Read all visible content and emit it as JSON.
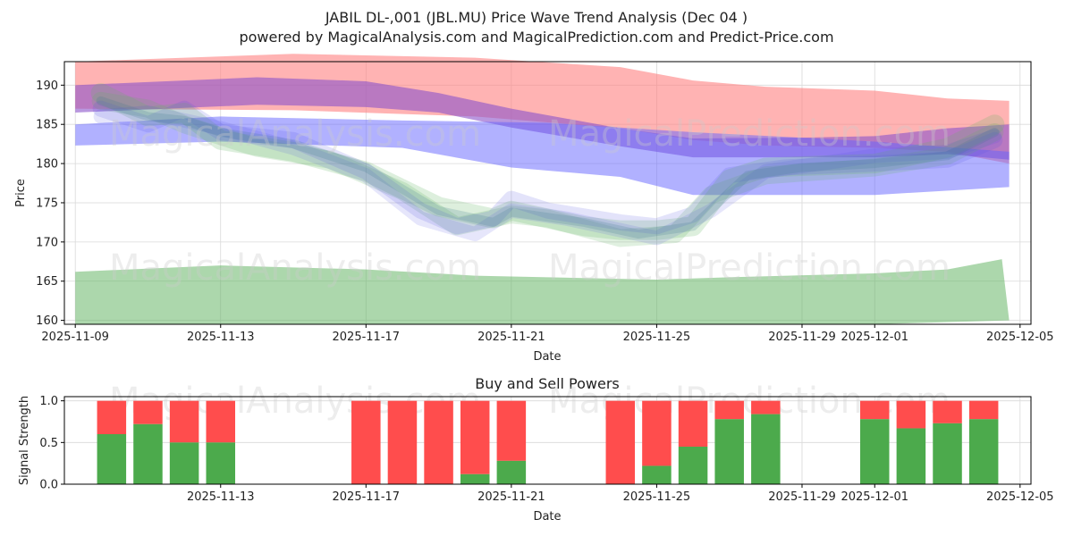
{
  "chart_data": [
    {
      "type": "area",
      "title_line1": "JABIL DL-,001 (JBL.MU) Price Wave Trend Analysis (Dec 04 )",
      "title_line2": "powered by MagicalAnalysis.com and MagicalPrediction.com and Predict-Price.com",
      "xlabel": "Date",
      "ylabel": "Price",
      "xlim": [
        -0.3,
        26.3
      ],
      "ylim": [
        159.5,
        193
      ],
      "x_ticks": [
        {
          "x": 0,
          "label": "2025-11-09"
        },
        {
          "x": 4,
          "label": "2025-11-13"
        },
        {
          "x": 8,
          "label": "2025-11-17"
        },
        {
          "x": 12,
          "label": "2025-11-21"
        },
        {
          "x": 16,
          "label": "2025-11-25"
        },
        {
          "x": 20,
          "label": "2025-11-29"
        },
        {
          "x": 22,
          "label": "2025-12-01"
        },
        {
          "x": 26,
          "label": "2025-12-05"
        }
      ],
      "y_ticks": [
        160,
        165,
        170,
        175,
        180,
        185,
        190
      ],
      "grid": true,
      "bands": [
        {
          "name": "red-upper-band",
          "color": "#ff8080",
          "opacity": 0.6,
          "upper": [
            [
              0,
              193
            ],
            [
              6,
              194
            ],
            [
              11,
              193.5
            ],
            [
              15,
              192.3
            ],
            [
              17,
              190.6
            ],
            [
              19,
              189.8
            ],
            [
              22,
              189.3
            ],
            [
              24,
              188.3
            ],
            [
              25.7,
              188
            ]
          ],
          "lower": [
            [
              0,
              187
            ],
            [
              6,
              186.8
            ],
            [
              11,
              186
            ],
            [
              15,
              184.5
            ],
            [
              17,
              183
            ],
            [
              19,
              182.3
            ],
            [
              22,
              182
            ],
            [
              24,
              181.5
            ],
            [
              25.7,
              180
            ]
          ]
        },
        {
          "name": "purple-band",
          "color": "#8a52c9",
          "opacity": 0.6,
          "upper": [
            [
              0,
              190
            ],
            [
              5,
              191
            ],
            [
              8,
              190.5
            ],
            [
              10,
              189
            ],
            [
              12,
              187
            ],
            [
              15,
              184.5
            ],
            [
              17,
              183.2
            ],
            [
              20,
              183.3
            ],
            [
              22,
              183.5
            ],
            [
              24,
              184.5
            ],
            [
              25.7,
              185
            ]
          ],
          "lower": [
            [
              0,
              186.5
            ],
            [
              5,
              187.5
            ],
            [
              8,
              187.2
            ],
            [
              10,
              186.5
            ],
            [
              12,
              184.6
            ],
            [
              15,
              182.2
            ],
            [
              17,
              180.8
            ],
            [
              20,
              180.8
            ],
            [
              22,
              180.8
            ],
            [
              24,
              181.2
            ],
            [
              25.7,
              180.5
            ]
          ]
        },
        {
          "name": "blue-upper-band",
          "color": "#6464ff",
          "opacity": 0.5,
          "upper": [
            [
              0,
              185
            ],
            [
              4,
              186
            ],
            [
              9,
              185.5
            ],
            [
              13,
              185.2
            ],
            [
              17,
              184
            ],
            [
              20,
              183.3
            ],
            [
              22,
              182.8
            ],
            [
              25.7,
              181.5
            ]
          ],
          "lower": [
            [
              0,
              182.3
            ],
            [
              4,
              182.8
            ],
            [
              9,
              182
            ],
            [
              12,
              179.5
            ],
            [
              15,
              178.3
            ],
            [
              17,
              176
            ],
            [
              20,
              176
            ],
            [
              22,
              176
            ],
            [
              25.7,
              177
            ]
          ]
        },
        {
          "name": "green-lower-band",
          "color": "#5aaf5a",
          "opacity": 0.5,
          "upper": [
            [
              0,
              166.2
            ],
            [
              4,
              167
            ],
            [
              8,
              166.5
            ],
            [
              11,
              165.7
            ],
            [
              16,
              165.2
            ],
            [
              18,
              165.5
            ],
            [
              22,
              166
            ],
            [
              24,
              166.5
            ],
            [
              25.5,
              167.8
            ]
          ],
          "lower": [
            [
              0,
              159.5
            ],
            [
              4,
              159.5
            ],
            [
              8,
              159.5
            ],
            [
              16,
              159.5
            ],
            [
              22,
              159.5
            ],
            [
              25.7,
              160
            ]
          ]
        }
      ],
      "wave_lines": [
        {
          "color": "#64b464",
          "opacity": 0.22,
          "width": 22,
          "points": [
            [
              0.7,
              189
            ],
            [
              2,
              186
            ],
            [
              3,
              186.5
            ],
            [
              4,
              183
            ],
            [
              6,
              181.5
            ],
            [
              8,
              179
            ],
            [
              10,
              174.5
            ],
            [
              11.5,
              173
            ],
            [
              12,
              174
            ],
            [
              14,
              172
            ],
            [
              15,
              171.5
            ],
            [
              16,
              171.5
            ],
            [
              17,
              172
            ],
            [
              18,
              178
            ],
            [
              19,
              179.5
            ],
            [
              22,
              180
            ],
            [
              24,
              182
            ],
            [
              25.3,
              185
            ]
          ]
        },
        {
          "color": "#64b464",
          "opacity": 0.2,
          "width": 20,
          "points": [
            [
              0.7,
              188
            ],
            [
              2,
              187
            ],
            [
              3,
              185
            ],
            [
              5,
              182
            ],
            [
              7,
              180.5
            ],
            [
              9,
              176.5
            ],
            [
              10.5,
              172
            ],
            [
              12,
              173.5
            ],
            [
              13,
              173
            ],
            [
              15,
              170.5
            ],
            [
              16.5,
              171
            ],
            [
              17.5,
              176
            ],
            [
              19,
              178.5
            ],
            [
              22,
              179.5
            ],
            [
              24,
              181
            ],
            [
              25.3,
              184
            ]
          ]
        },
        {
          "color": "#5050e0",
          "opacity": 0.16,
          "width": 18,
          "points": [
            [
              0.7,
              187
            ],
            [
              2,
              185
            ],
            [
              3,
              187
            ],
            [
              4,
              184
            ],
            [
              6,
              183
            ],
            [
              8,
              179
            ],
            [
              9.5,
              174
            ],
            [
              10.5,
              172
            ],
            [
              11.5,
              173
            ],
            [
              12,
              175.5
            ],
            [
              13,
              174
            ],
            [
              15,
              172.5
            ],
            [
              16,
              172
            ],
            [
              17,
              173.5
            ],
            [
              18,
              178.5
            ],
            [
              19.5,
              179.5
            ],
            [
              22,
              180
            ],
            [
              24,
              180.5
            ],
            [
              25.3,
              183
            ]
          ]
        },
        {
          "color": "#5050e0",
          "opacity": 0.14,
          "width": 16,
          "points": [
            [
              0.7,
              186
            ],
            [
              2,
              186.5
            ],
            [
              4,
              184.5
            ],
            [
              6,
              182
            ],
            [
              8,
              178.5
            ],
            [
              9.5,
              173
            ],
            [
              11,
              171
            ],
            [
              12,
              174
            ],
            [
              13.5,
              173
            ],
            [
              15,
              171.5
            ],
            [
              16,
              170.5
            ],
            [
              17.5,
              174
            ],
            [
              19,
              179
            ],
            [
              22,
              181
            ],
            [
              24,
              181.5
            ],
            [
              25.3,
              183.5
            ]
          ]
        },
        {
          "color": "#3a7a8a",
          "opacity": 0.2,
          "width": 10,
          "points": [
            [
              0.7,
              188
            ],
            [
              2,
              186
            ],
            [
              3,
              185.5
            ],
            [
              4,
              184
            ],
            [
              6,
              182.5
            ],
            [
              8,
              179.5
            ],
            [
              10,
              174
            ],
            [
              11.5,
              172.5
            ],
            [
              12,
              173.8
            ],
            [
              14,
              172.5
            ],
            [
              15.5,
              171
            ],
            [
              17,
              172
            ],
            [
              18.5,
              178.5
            ],
            [
              20,
              179.5
            ],
            [
              22,
              180
            ],
            [
              24,
              181
            ],
            [
              25.3,
              184
            ]
          ]
        }
      ]
    },
    {
      "type": "bar",
      "title": "Buy and Sell Powers",
      "xlabel": "Date",
      "ylabel": "Signal Strength",
      "xlim": [
        -0.3,
        26.3
      ],
      "ylim": [
        0,
        1.05
      ],
      "x_ticks": [
        {
          "x": 4,
          "label": "2025-11-13"
        },
        {
          "x": 8,
          "label": "2025-11-17"
        },
        {
          "x": 12,
          "label": "2025-11-21"
        },
        {
          "x": 16,
          "label": "2025-11-25"
        },
        {
          "x": 20,
          "label": "2025-11-29"
        },
        {
          "x": 22,
          "label": "2025-12-01"
        },
        {
          "x": 26,
          "label": "2025-12-05"
        }
      ],
      "y_ticks": [
        0.0,
        0.5,
        1.0
      ],
      "grid": true,
      "series": [
        {
          "name": "buy",
          "color": "#4caa4c"
        },
        {
          "name": "sell",
          "color": "#ff4d4d"
        }
      ],
      "bars": [
        {
          "x": 1,
          "buy": 0.6
        },
        {
          "x": 2,
          "buy": 0.72
        },
        {
          "x": 3,
          "buy": 0.5
        },
        {
          "x": 4,
          "buy": 0.5
        },
        {
          "x": 8,
          "buy": 0.0
        },
        {
          "x": 9,
          "buy": 0.0
        },
        {
          "x": 10,
          "buy": 0.0
        },
        {
          "x": 11,
          "buy": 0.12
        },
        {
          "x": 12,
          "buy": 0.28
        },
        {
          "x": 15,
          "buy": 0.0
        },
        {
          "x": 16,
          "buy": 0.22
        },
        {
          "x": 17,
          "buy": 0.45
        },
        {
          "x": 18,
          "buy": 0.78
        },
        {
          "x": 19,
          "buy": 0.84
        },
        {
          "x": 22,
          "buy": 0.78
        },
        {
          "x": 23,
          "buy": 0.67
        },
        {
          "x": 24,
          "buy": 0.73
        },
        {
          "x": 25,
          "buy": 0.78
        }
      ]
    }
  ],
  "watermarks": [
    "MagicalAnalysis.com",
    "MagicalPrediction.com"
  ]
}
